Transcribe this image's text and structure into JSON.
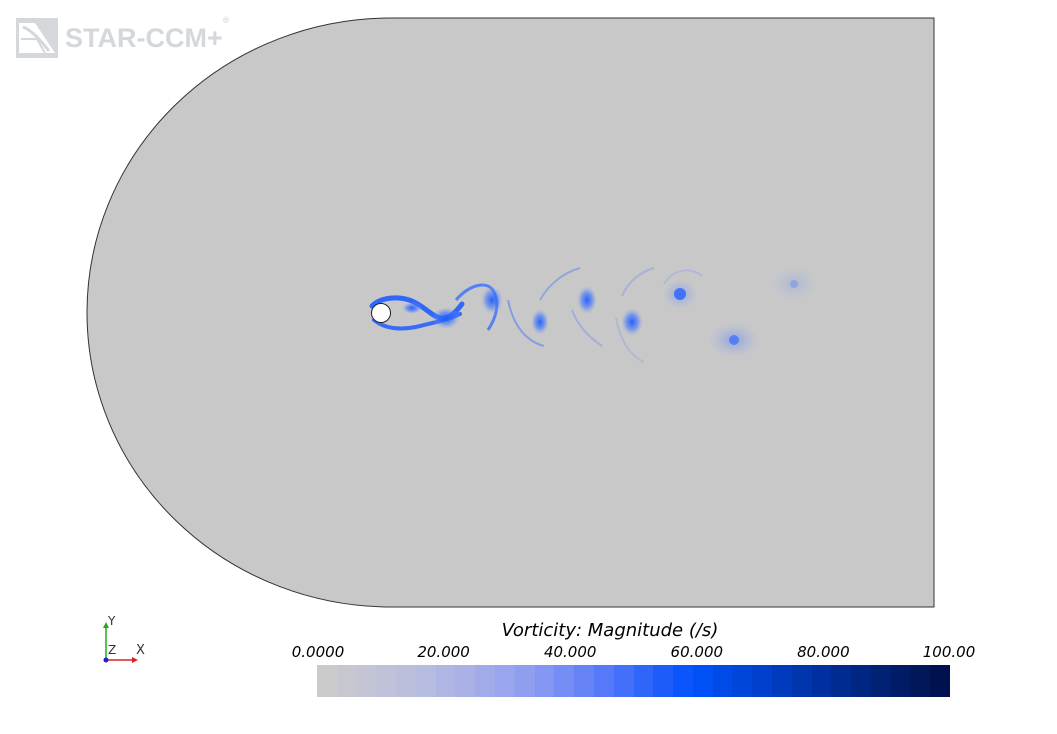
{
  "logo": {
    "text": "STAR-CCM+",
    "reg_mark": "®",
    "color": "#d4d8dd"
  },
  "scene": {
    "domain_fill": "#c8c8c8",
    "domain_stroke": "#333333",
    "cylinder_fill": "#ffffff",
    "cylinder_stroke": "#222222",
    "vortex_color": "#1a5cff"
  },
  "axes_triad": {
    "y_label": "Y",
    "z_label": "Z",
    "x_label": "X",
    "y_color": "#22aa22",
    "x_color": "#dd2222",
    "z_color": "#2222cc"
  },
  "colorbar": {
    "title": "Vorticity: Magnitude (/s)",
    "ticks": [
      "0.0000",
      "20.000",
      "40.000",
      "60.000",
      "80.000",
      "100.00"
    ],
    "min": 0,
    "max": 100,
    "colors": [
      "#cbcbcb",
      "#c7c8cf",
      "#c3c5d4",
      "#bfc2d8",
      "#bbbfdc",
      "#b6bbe0",
      "#b0b6e3",
      "#a9b1e6",
      "#a2abe9",
      "#99a5ec",
      "#8f9eef",
      "#8396f2",
      "#758df4",
      "#6683f6",
      "#5579f8",
      "#436ff9",
      "#3065fa",
      "#1d5cfb",
      "#0b55fc",
      "#0050f5",
      "#004be8",
      "#0046da",
      "#0040cc",
      "#003bbd",
      "#0035ae",
      "#00309f",
      "#002b91",
      "#002682",
      "#002174",
      "#001c66",
      "#00175a",
      "#001150"
    ]
  }
}
